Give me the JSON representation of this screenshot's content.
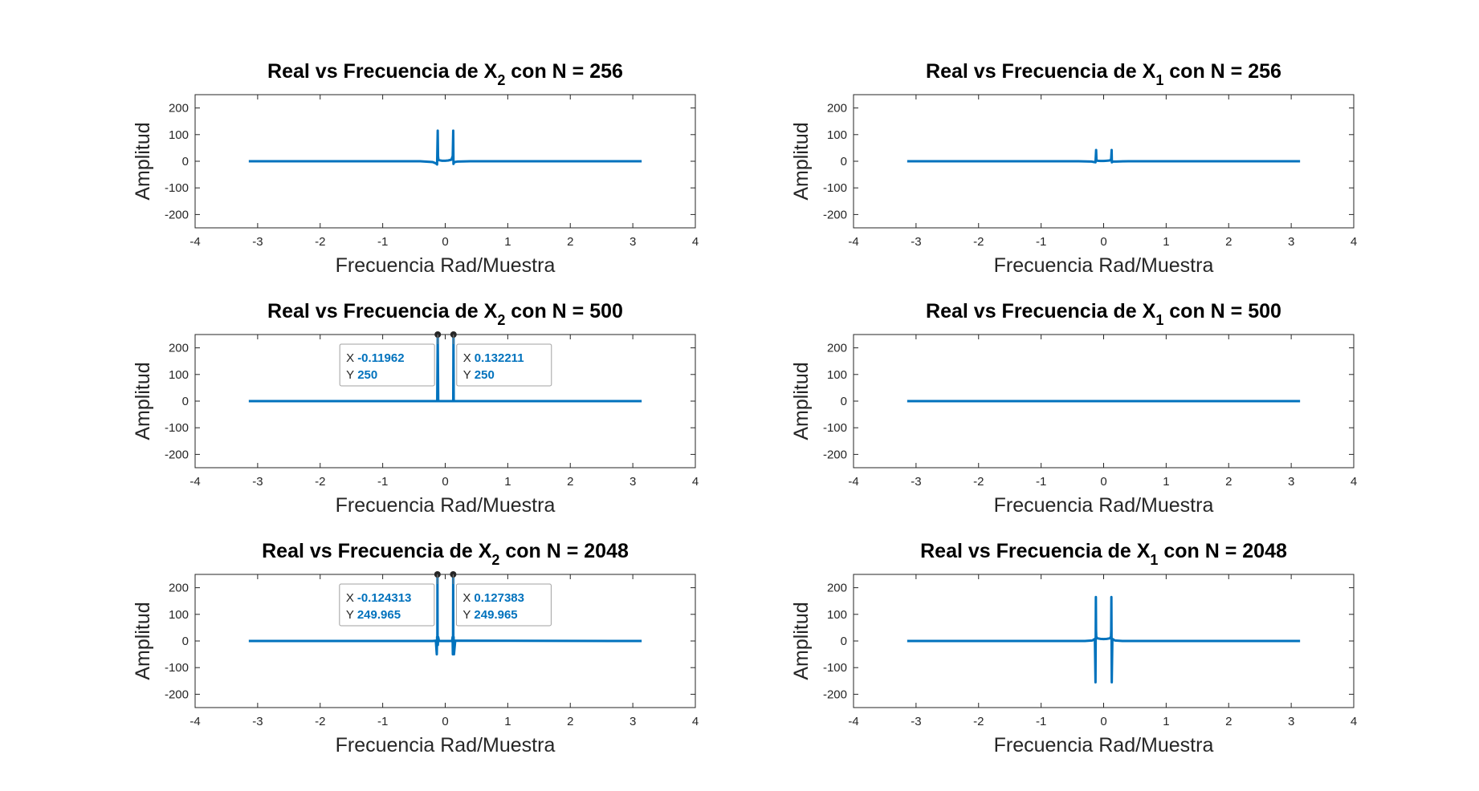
{
  "colors": {
    "line": "#0072bd",
    "axis": "#262626",
    "tip_bg": "#ffffff",
    "tip_border": "#a0a0a0",
    "tip_value": "#0072bd"
  },
  "chart_data": [
    {
      "type": "line",
      "title_main": "Real vs Frecuencia de X",
      "title_sub": "2",
      "title_tail": " con N = 256",
      "xlabel": "Frecuencia Rad/Muestra",
      "ylabel": "Amplitud",
      "xlim": [
        -4,
        4
      ],
      "ylim": [
        -250,
        250
      ],
      "xticks": [
        "-4",
        "-3",
        "-2",
        "-1",
        "0",
        "1",
        "2",
        "3",
        "4"
      ],
      "yticks": [
        "-200",
        "-100",
        "0",
        "100",
        "200"
      ],
      "grid": false,
      "series": [
        {
          "x": [
            -3.1416,
            -0.4,
            -0.2,
            -0.15,
            -0.13,
            -0.12,
            -0.115,
            -0.11,
            -0.1,
            -0.05,
            0,
            0.05,
            0.1,
            0.12,
            0.128,
            0.132,
            0.138,
            0.15,
            0.2,
            0.4,
            3.1416
          ],
          "y": [
            0,
            0,
            -3,
            -8,
            -12,
            115,
            20,
            8,
            4,
            2,
            2,
            3,
            6,
            20,
            115,
            -10,
            -6,
            -3,
            -1,
            0,
            0
          ]
        }
      ],
      "datatips": []
    },
    {
      "type": "line",
      "title_main": "Real vs Frecuencia de X",
      "title_sub": "1",
      "title_tail": " con N = 256",
      "xlabel": "Frecuencia Rad/Muestra",
      "ylabel": "Amplitud",
      "xlim": [
        -4,
        4
      ],
      "ylim": [
        -250,
        250
      ],
      "xticks": [
        "-4",
        "-3",
        "-2",
        "-1",
        "0",
        "1",
        "2",
        "3",
        "4"
      ],
      "yticks": [
        "-200",
        "-100",
        "0",
        "100",
        "200"
      ],
      "grid": false,
      "series": [
        {
          "x": [
            -3.1416,
            -0.4,
            -0.2,
            -0.15,
            -0.13,
            -0.12,
            -0.115,
            -0.11,
            -0.1,
            -0.05,
            0,
            0.05,
            0.1,
            0.12,
            0.128,
            0.132,
            0.138,
            0.15,
            0.2,
            0.4,
            3.1416
          ],
          "y": [
            0,
            0,
            -1,
            -3,
            -4,
            42,
            8,
            4,
            2,
            1,
            1,
            2,
            3,
            8,
            42,
            -4,
            -3,
            -1,
            -1,
            0,
            0
          ]
        }
      ],
      "datatips": []
    },
    {
      "type": "line",
      "title_main": "Real vs Frecuencia de X",
      "title_sub": "2",
      "title_tail": " con N = 500",
      "xlabel": "Frecuencia Rad/Muestra",
      "ylabel": "Amplitud",
      "xlim": [
        -4,
        4
      ],
      "ylim": [
        -250,
        250
      ],
      "xticks": [
        "-4",
        "-3",
        "-2",
        "-1",
        "0",
        "1",
        "2",
        "3",
        "4"
      ],
      "yticks": [
        "-200",
        "-100",
        "0",
        "100",
        "200"
      ],
      "grid": false,
      "series": [
        {
          "x": [
            -3.1416,
            -0.14,
            -0.128,
            -0.12,
            -0.112,
            -0.1,
            0.12,
            0.128,
            0.132,
            0.136,
            0.145,
            3.1416
          ],
          "y": [
            0,
            0,
            0,
            250,
            0,
            0,
            0,
            0,
            250,
            0,
            0,
            0
          ]
        }
      ],
      "datatips": [
        {
          "x_label": "X",
          "x_value": "-0.11962",
          "y_label": "Y",
          "y_value": "250",
          "x": -0.11962,
          "y": 250,
          "side": "left"
        },
        {
          "x_label": "X",
          "x_value": "0.132211",
          "y_label": "Y",
          "y_value": "250",
          "x": 0.132211,
          "y": 250,
          "side": "right"
        }
      ]
    },
    {
      "type": "line",
      "title_main": "Real vs Frecuencia de X",
      "title_sub": "1",
      "title_tail": " con N = 500",
      "xlabel": "Frecuencia Rad/Muestra",
      "ylabel": "Amplitud",
      "xlim": [
        -4,
        4
      ],
      "ylim": [
        -250,
        250
      ],
      "xticks": [
        "-4",
        "-3",
        "-2",
        "-1",
        "0",
        "1",
        "2",
        "3",
        "4"
      ],
      "yticks": [
        "-200",
        "-100",
        "0",
        "100",
        "200"
      ],
      "grid": false,
      "series": [
        {
          "x": [
            -3.1416,
            3.1416
          ],
          "y": [
            0,
            0
          ]
        }
      ],
      "datatips": []
    },
    {
      "type": "line",
      "title_main": "Real vs Frecuencia de X",
      "title_sub": "2",
      "title_tail": " con N = 2048",
      "xlabel": "Frecuencia Rad/Muestra",
      "ylabel": "Amplitud",
      "xlim": [
        -4,
        4
      ],
      "ylim": [
        -250,
        250
      ],
      "xticks": [
        "-4",
        "-3",
        "-2",
        "-1",
        "0",
        "1",
        "2",
        "3",
        "4"
      ],
      "yticks": [
        "-200",
        "-100",
        "0",
        "100",
        "200"
      ],
      "grid": false,
      "series": [
        {
          "x": [
            -3.1416,
            -0.2,
            -0.15,
            -0.135,
            -0.13,
            -0.126,
            -0.1243,
            -0.122,
            -0.118,
            -0.113,
            -0.1,
            0.11,
            0.118,
            0.122,
            0.125,
            0.1274,
            0.13,
            0.134,
            0.14,
            0.16,
            3.1416
          ],
          "y": [
            0,
            0,
            1,
            -50,
            15,
            -10,
            249.965,
            20,
            -15,
            15,
            0,
            0,
            15,
            -50,
            20,
            249.965,
            -10,
            15,
            -50,
            1,
            0
          ]
        }
      ],
      "datatips": [
        {
          "x_label": "X",
          "x_value": "-0.124313",
          "y_label": "Y",
          "y_value": "249.965",
          "x": -0.124313,
          "y": 249.965,
          "side": "left"
        },
        {
          "x_label": "X",
          "x_value": "0.127383",
          "y_label": "Y",
          "y_value": "249.965",
          "x": 0.127383,
          "y": 249.965,
          "side": "right"
        }
      ]
    },
    {
      "type": "line",
      "title_main": "Real vs Frecuencia de X",
      "title_sub": "1",
      "title_tail": " con N = 2048",
      "xlabel": "Frecuencia Rad/Muestra",
      "ylabel": "Amplitud",
      "xlim": [
        -4,
        4
      ],
      "ylim": [
        -250,
        250
      ],
      "xticks": [
        "-4",
        "-3",
        "-2",
        "-1",
        "0",
        "1",
        "2",
        "3",
        "4"
      ],
      "yticks": [
        "-200",
        "-100",
        "0",
        "100",
        "200"
      ],
      "grid": false,
      "series": [
        {
          "x": [
            -3.1416,
            -0.3,
            -0.18,
            -0.14,
            -0.13,
            -0.127,
            -0.124,
            -0.121,
            -0.118,
            -0.114,
            -0.1,
            -0.05,
            0,
            0.05,
            0.1,
            0.114,
            0.118,
            0.121,
            0.124,
            0.127,
            0.13,
            0.14,
            0.18,
            0.3,
            3.1416
          ],
          "y": [
            0,
            0,
            2,
            8,
            -155,
            0,
            165,
            40,
            20,
            15,
            10,
            8,
            7,
            8,
            10,
            15,
            20,
            40,
            165,
            0,
            -155,
            8,
            2,
            0,
            0
          ]
        }
      ],
      "datatips": []
    }
  ]
}
